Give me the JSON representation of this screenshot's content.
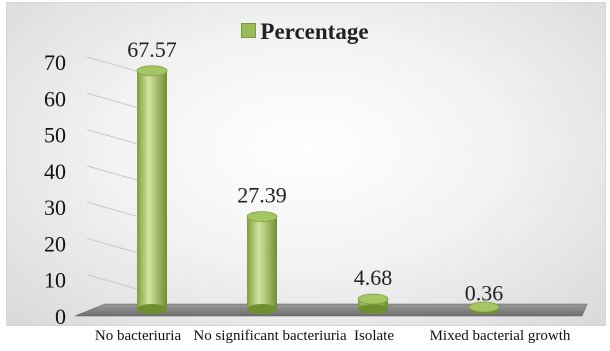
{
  "chart_data": {
    "type": "bar",
    "categories": [
      "No bacteriuria",
      "No significant bacteriuria",
      "Isolate",
      "Mixed bacterial growth"
    ],
    "series": [
      {
        "name": "Percentage",
        "values": [
          67.57,
          27.39,
          4.68,
          0.36
        ]
      }
    ],
    "data_labels": [
      "67.57",
      "27.39",
      "4.68",
      "0.36"
    ],
    "yticks": [
      "0",
      "10",
      "20",
      "30",
      "40",
      "50",
      "60",
      "70"
    ],
    "ylim": [
      0,
      70
    ],
    "legend_position": "top-center",
    "grid": true,
    "style": "3d-cylinder",
    "colors": {
      "bar": "#9bbb59",
      "bar_dark": "#6f8f2e",
      "bar_light": "#d7e8a8",
      "floor": "#7f7f7f"
    }
  }
}
